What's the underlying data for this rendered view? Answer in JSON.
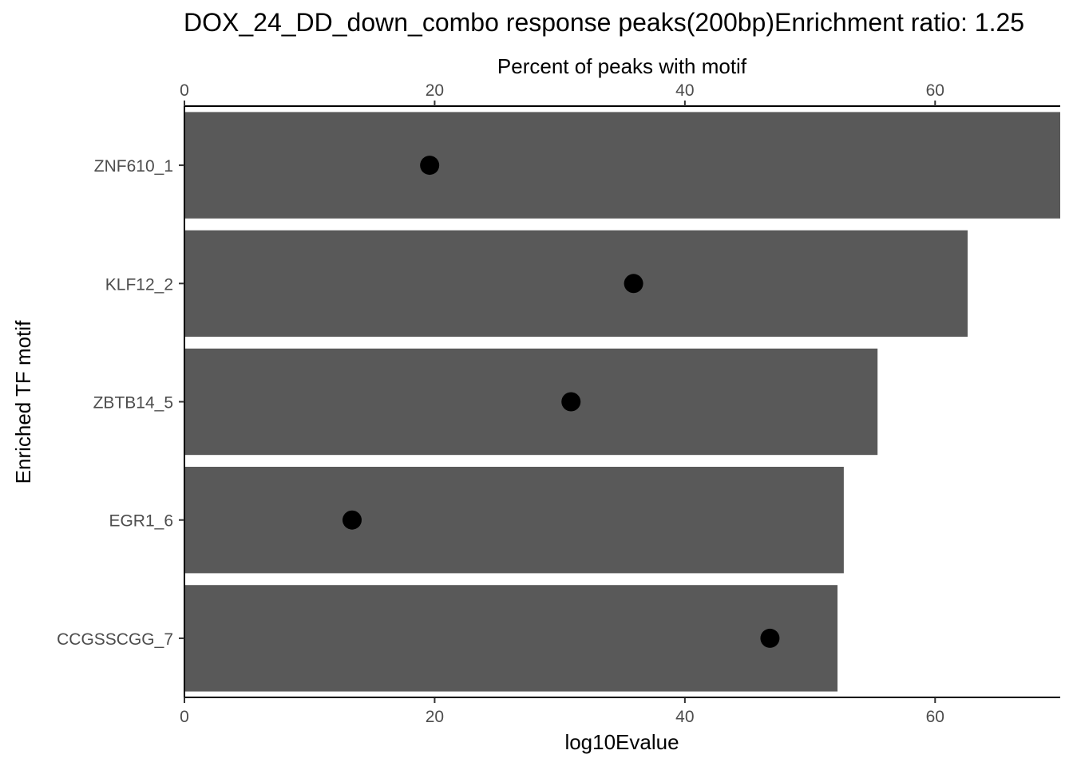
{
  "chart_data": {
    "type": "bar",
    "title": "DOX_24_DD_down_combo response peaks(200bp)Enrichment ratio: 1.25",
    "xlabel": "log10Evalue",
    "x2label": "Percent of peaks with motif",
    "ylabel": "Enriched TF motif",
    "orientation": "horizontal",
    "categories": [
      "ZNF610_1",
      "KLF12_2",
      "ZBTB14_5",
      "EGR1_6",
      "CCGSSCGG_7"
    ],
    "series": [
      {
        "values": [
          70.0,
          62.6,
          55.4,
          52.7,
          52.2
        ],
        "color": "#595959",
        "mark": "bar",
        "axis": "bottom"
      },
      {
        "values": [
          19.6,
          35.9,
          30.9,
          13.4,
          46.8
        ],
        "color": "#000000",
        "mark": "point",
        "axis": "top"
      }
    ],
    "xlim": [
      0,
      70
    ],
    "xticks": [
      0,
      20,
      40,
      60
    ],
    "x2ticks": [
      0,
      20,
      40,
      60
    ],
    "grid": false,
    "legend": "none"
  }
}
